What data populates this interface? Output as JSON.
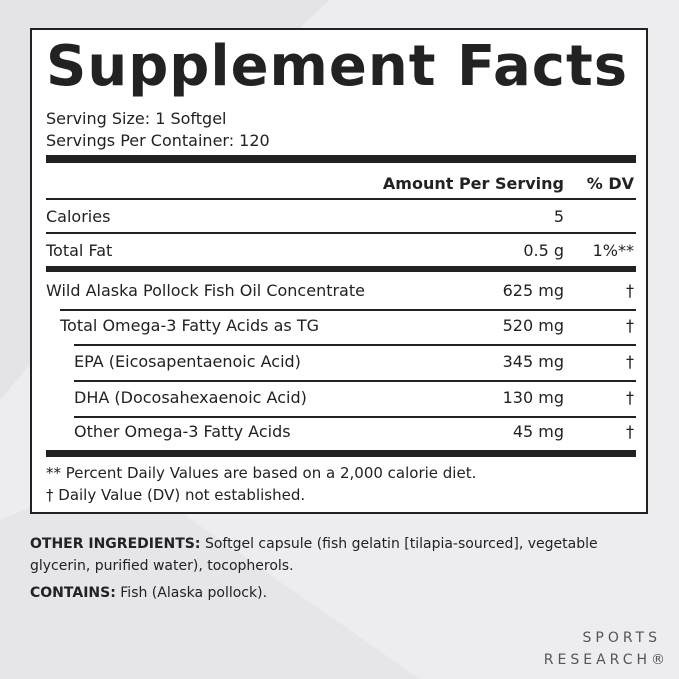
{
  "panel": {
    "title": "Supplement Facts",
    "serving_size": "Serving Size: 1 Softgel",
    "servings_per_container": "Servings Per Container: 120",
    "header": {
      "amount": "Amount Per Serving",
      "dv": "% DV"
    },
    "rows": [
      {
        "name": "Calories",
        "amount": "5",
        "dv": ""
      },
      {
        "name": "Total Fat",
        "amount": "0.5 g",
        "dv": "1%**"
      },
      {
        "name": "Wild Alaska Pollock Fish Oil Concentrate",
        "amount": "625 mg",
        "dv": "†"
      },
      {
        "name": "Total Omega-3 Fatty Acids as TG",
        "amount": "520 mg",
        "dv": "†"
      },
      {
        "name": "EPA (Eicosapentaenoic Acid)",
        "amount": "345 mg",
        "dv": "†"
      },
      {
        "name": "DHA (Docosahexaenoic Acid)",
        "amount": "130 mg",
        "dv": "†"
      },
      {
        "name": "Other Omega-3 Fatty Acids",
        "amount": "45 mg",
        "dv": "†"
      }
    ],
    "footnotes": [
      "** Percent Daily Values are based on a 2,000 calorie diet.",
      "†  Daily Value (DV) not established."
    ]
  },
  "other_ingredients": {
    "label": "OTHER INGREDIENTS:",
    "text": "Softgel capsule (fish gelatin [tilapia-sourced], vegetable glycerin, purified water), tocopherols."
  },
  "contains": {
    "label": "CONTAINS:",
    "text": "Fish (Alaska pollock)."
  },
  "brand": {
    "line1": "SPORTS",
    "line2": "RESEARCH®"
  }
}
